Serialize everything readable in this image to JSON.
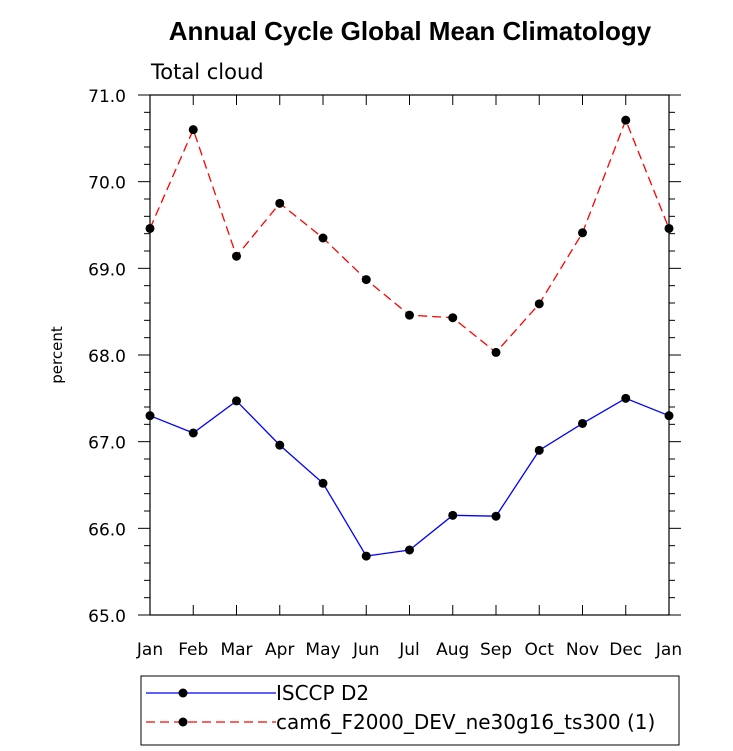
{
  "chart_data": {
    "type": "line",
    "title": "Annual Cycle Global Mean Climatology",
    "subtitle": "Total cloud",
    "ylabel": "percent",
    "xlabel": "",
    "categories": [
      "Jan",
      "Feb",
      "Mar",
      "Apr",
      "May",
      "Jun",
      "Jul",
      "Aug",
      "Sep",
      "Oct",
      "Nov",
      "Dec",
      "Jan"
    ],
    "ylim": [
      65.0,
      71.0
    ],
    "yticks": [
      "65.0",
      "66.0",
      "67.0",
      "68.0",
      "69.0",
      "70.0",
      "71.0"
    ],
    "grid": false,
    "legend_position": "bottom",
    "series": [
      {
        "name": "ISCCP D2",
        "color": "#0000ff",
        "dash": "solid",
        "marker": "filled-circle",
        "values": [
          67.3,
          67.1,
          67.47,
          66.96,
          66.52,
          65.68,
          65.75,
          66.15,
          66.14,
          66.9,
          67.21,
          67.5,
          67.3
        ]
      },
      {
        "name": "cam6_F2000_DEV_ne30g16_ts300 (1)",
        "color": "#ff0000",
        "dash": "dashed",
        "marker": "filled-circle",
        "values": [
          69.46,
          70.6,
          69.14,
          69.75,
          69.35,
          68.87,
          68.46,
          68.43,
          68.03,
          68.59,
          69.41,
          70.71,
          69.46
        ]
      }
    ]
  }
}
